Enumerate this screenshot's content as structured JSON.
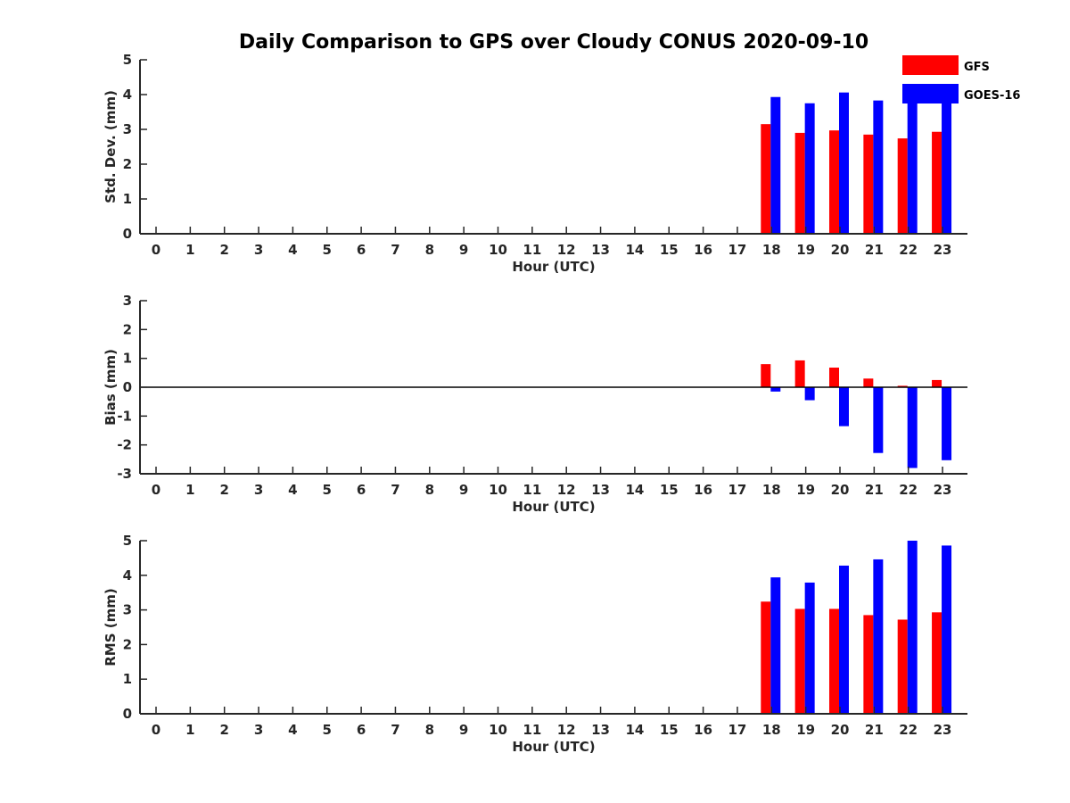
{
  "title": "Daily Comparison to GPS over Cloudy CONUS 2020-09-10",
  "colors": {
    "GFS": "#ff0000",
    "GOES-16": "#0000ff",
    "axis": "#262626",
    "zero_line": "#000000"
  },
  "legend": {
    "position": "top-right",
    "entries": [
      "GFS",
      "GOES-16"
    ]
  },
  "chart_data": [
    {
      "type": "bar",
      "xlabel": "Hour (UTC)",
      "ylabel": "Std. Dev. (mm)",
      "ylim": [
        0,
        5
      ],
      "yticks": [
        "0",
        "1",
        "2",
        "3",
        "4",
        "5"
      ],
      "categories": [
        "0",
        "1",
        "2",
        "3",
        "4",
        "5",
        "6",
        "7",
        "8",
        "9",
        "10",
        "11",
        "12",
        "13",
        "14",
        "15",
        "16",
        "17",
        "18",
        "19",
        "20",
        "21",
        "22",
        "23"
      ],
      "series": [
        {
          "name": "GFS",
          "values": [
            null,
            null,
            null,
            null,
            null,
            null,
            null,
            null,
            null,
            null,
            null,
            null,
            null,
            null,
            null,
            null,
            null,
            null,
            3.15,
            2.9,
            2.97,
            2.85,
            2.74,
            2.93
          ]
        },
        {
          "name": "GOES-16",
          "values": [
            null,
            null,
            null,
            null,
            null,
            null,
            null,
            null,
            null,
            null,
            null,
            null,
            null,
            null,
            null,
            null,
            null,
            null,
            3.93,
            3.75,
            4.06,
            3.83,
            4.18,
            4.1
          ]
        }
      ]
    },
    {
      "type": "bar",
      "xlabel": "Hour (UTC)",
      "ylabel": "Bias (mm)",
      "ylim": [
        -3,
        3
      ],
      "yticks": [
        "-3",
        "-2",
        "-1",
        "0",
        "1",
        "2",
        "3"
      ],
      "zero_line": true,
      "categories": [
        "0",
        "1",
        "2",
        "3",
        "4",
        "5",
        "6",
        "7",
        "8",
        "9",
        "10",
        "11",
        "12",
        "13",
        "14",
        "15",
        "16",
        "17",
        "18",
        "19",
        "20",
        "21",
        "22",
        "23"
      ],
      "series": [
        {
          "name": "GFS",
          "values": [
            null,
            null,
            null,
            null,
            null,
            null,
            null,
            null,
            null,
            null,
            null,
            null,
            null,
            null,
            null,
            null,
            null,
            null,
            0.8,
            0.93,
            0.68,
            0.3,
            0.05,
            0.25
          ]
        },
        {
          "name": "GOES-16",
          "values": [
            null,
            null,
            null,
            null,
            null,
            null,
            null,
            null,
            null,
            null,
            null,
            null,
            null,
            null,
            null,
            null,
            null,
            null,
            -0.15,
            -0.45,
            -1.35,
            -2.28,
            -2.8,
            -2.53
          ]
        }
      ]
    },
    {
      "type": "bar",
      "xlabel": "Hour (UTC)",
      "ylabel": "RMS (mm)",
      "ylim": [
        0,
        5
      ],
      "yticks": [
        "0",
        "1",
        "2",
        "3",
        "4",
        "5"
      ],
      "categories": [
        "0",
        "1",
        "2",
        "3",
        "4",
        "5",
        "6",
        "7",
        "8",
        "9",
        "10",
        "11",
        "12",
        "13",
        "14",
        "15",
        "16",
        "17",
        "18",
        "19",
        "20",
        "21",
        "22",
        "23"
      ],
      "series": [
        {
          "name": "GFS",
          "values": [
            null,
            null,
            null,
            null,
            null,
            null,
            null,
            null,
            null,
            null,
            null,
            null,
            null,
            null,
            null,
            null,
            null,
            null,
            3.24,
            3.03,
            3.03,
            2.85,
            2.72,
            2.93
          ]
        },
        {
          "name": "GOES-16",
          "values": [
            null,
            null,
            null,
            null,
            null,
            null,
            null,
            null,
            null,
            null,
            null,
            null,
            null,
            null,
            null,
            null,
            null,
            null,
            3.94,
            3.79,
            4.28,
            4.46,
            5.0,
            4.86
          ]
        }
      ]
    }
  ]
}
